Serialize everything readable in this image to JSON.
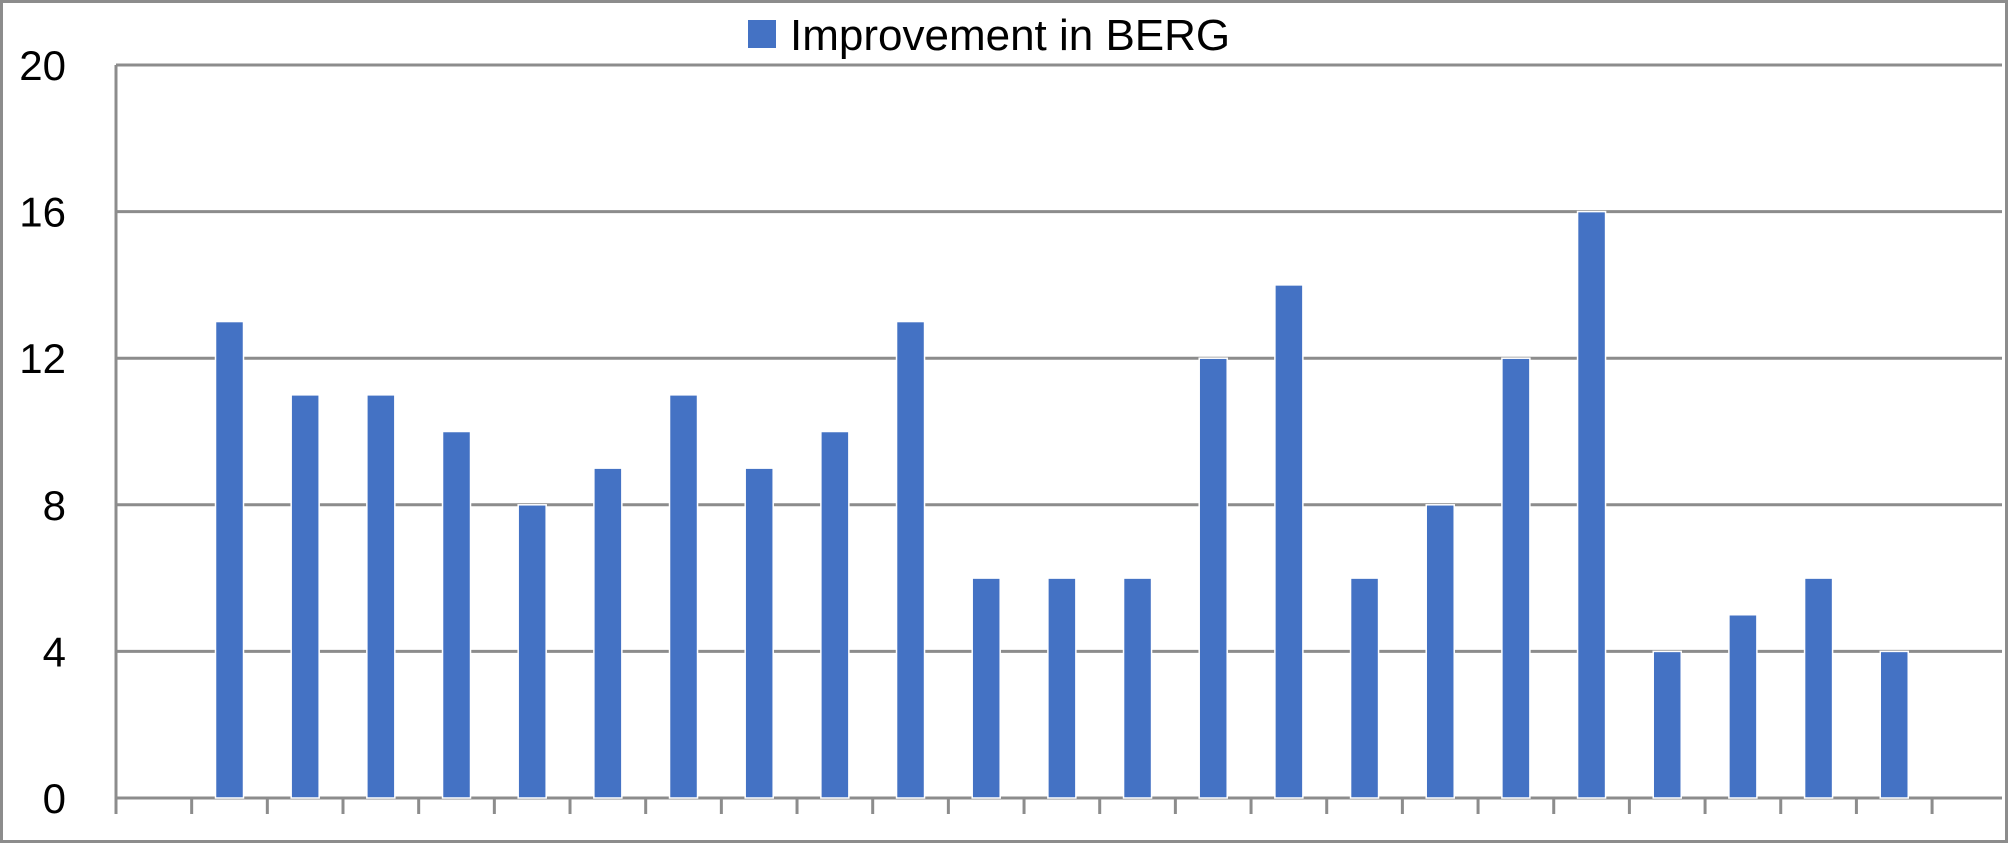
{
  "chart_data": {
    "type": "bar",
    "categories": [
      "",
      "",
      "",
      "",
      "",
      "",
      "",
      "",
      "",
      "",
      "",
      "",
      "",
      "",
      "",
      "",
      "",
      "",
      "",
      "",
      "",
      "",
      "",
      ""
    ],
    "series": [
      {
        "name": "Improvement in BERG",
        "color": "#4472c4",
        "values": [
          null,
          13,
          11,
          11,
          10,
          8,
          9,
          11,
          9,
          10,
          13,
          6,
          6,
          6,
          12,
          14,
          6,
          8,
          12,
          16,
          4,
          5,
          6,
          4
        ]
      }
    ],
    "ylim": [
      0,
      20
    ],
    "yticks": [
      "0",
      "4",
      "8",
      "12",
      "16",
      "20"
    ],
    "legend": "top-center",
    "grid": true,
    "title": "",
    "xlabel": "",
    "ylabel": ""
  }
}
